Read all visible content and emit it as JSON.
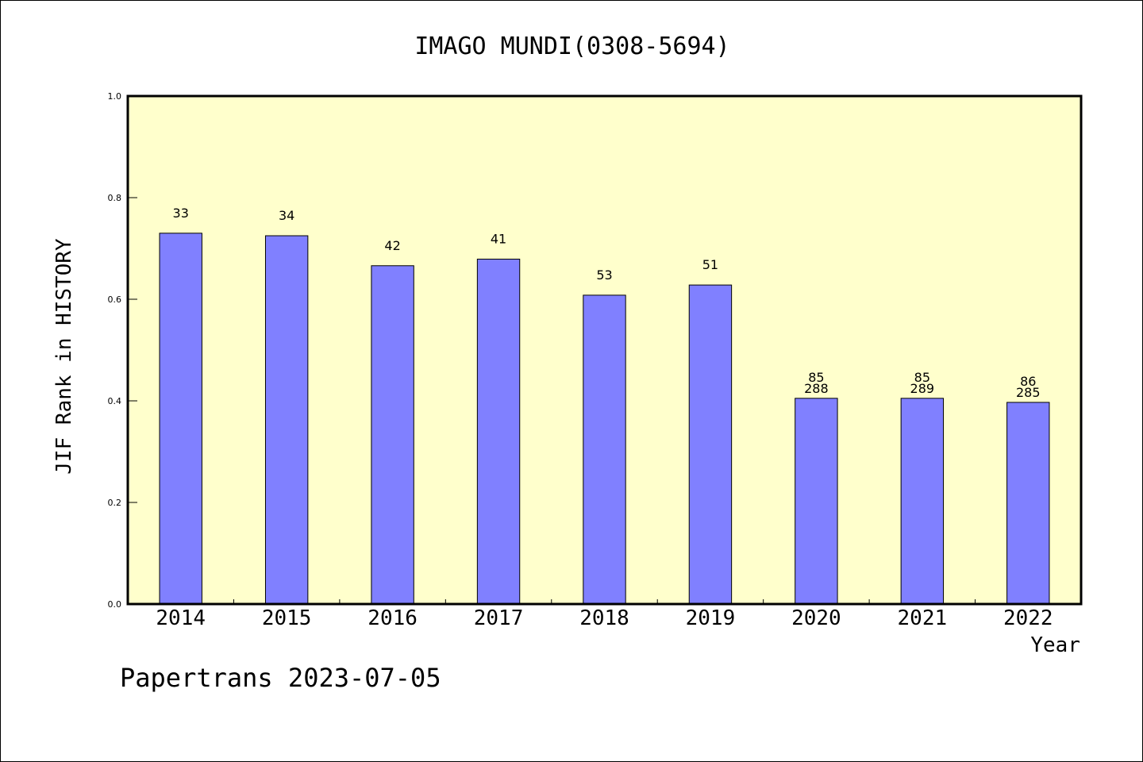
{
  "chart_data": {
    "type": "bar",
    "title": "IMAGO MUNDI(0308-5694)",
    "xlabel": "Year",
    "ylabel": "JIF Rank in HISTORY",
    "ylim": [
      0,
      1.0
    ],
    "yticks": [
      "0.0",
      "0.2",
      "0.4",
      "0.6",
      "0.8",
      "1.0"
    ],
    "grid": false,
    "categories": [
      "2014",
      "2015",
      "2016",
      "2017",
      "2018",
      "2019",
      "2020",
      "2021",
      "2022"
    ],
    "values": [
      0.73,
      0.725,
      0.666,
      0.679,
      0.608,
      0.628,
      0.405,
      0.405,
      0.397
    ],
    "bar_labels": [
      [
        "33"
      ],
      [
        "34"
      ],
      [
        "42"
      ],
      [
        "41"
      ],
      [
        "53"
      ],
      [
        "51"
      ],
      [
        "85",
        "288"
      ],
      [
        "85",
        "289"
      ],
      [
        "86",
        "285"
      ]
    ],
    "colors": {
      "plot_background": "#ffffcc",
      "bar_fill": "#8080ff",
      "bar_stroke": "#000000"
    }
  },
  "footer": {
    "text": "Papertrans 2023-07-05"
  }
}
